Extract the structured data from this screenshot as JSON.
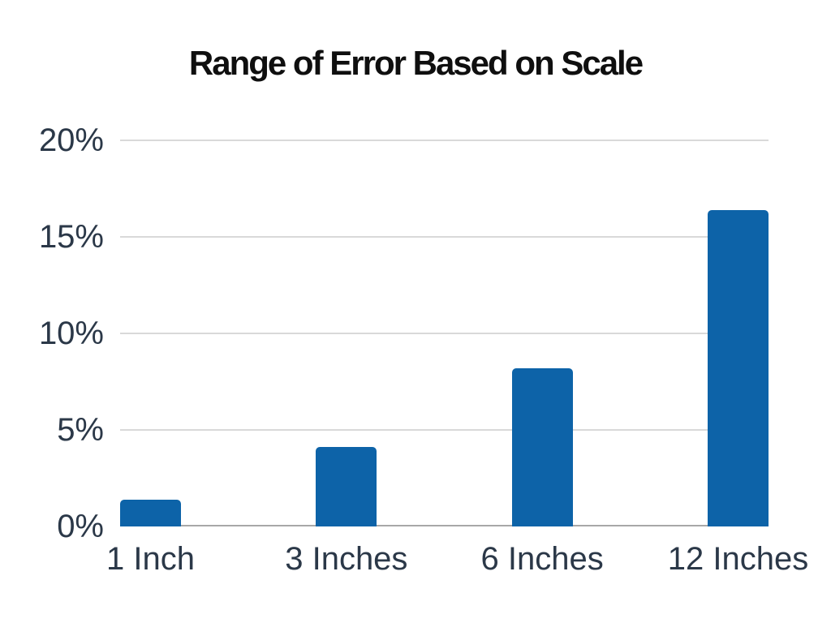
{
  "chart_data": {
    "type": "bar",
    "title": "Range of Error Based on Scale",
    "categories": [
      "1 Inch",
      "3 Inches",
      "6 Inches",
      "12 Inches"
    ],
    "values": [
      1.4,
      4.1,
      8.2,
      16.4
    ],
    "value_unit": "%",
    "xlabel": "",
    "ylabel": "",
    "ylim": [
      0,
      20
    ],
    "yticks": [
      0,
      5,
      10,
      15,
      20
    ],
    "ytick_labels": [
      "0%",
      "5%",
      "10%",
      "15%",
      "20%"
    ],
    "grid": "horizontal",
    "legend": "none",
    "colors": {
      "bar": "#0d63a8",
      "title_text": "#0f0f0f",
      "axis_label_text": "#2b3848",
      "gridline": "#d9d9d9",
      "baseline": "#a8a8a8",
      "background": "#ffffff"
    }
  }
}
